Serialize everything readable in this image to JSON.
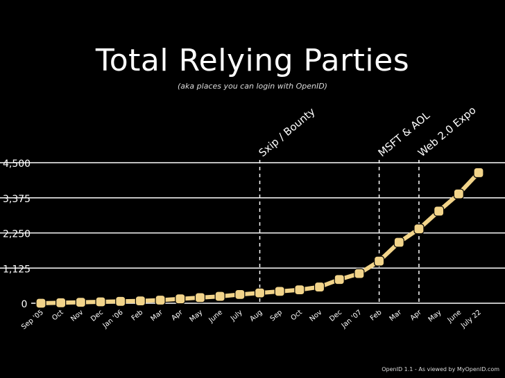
{
  "chart_data": {
    "type": "line",
    "title": "Total Relying Parties",
    "subtitle": "(aka places you can login with OpenID)",
    "footer": "OpenID 1.1 - As viewed by MyOpenID.com",
    "y_ticks": [
      "0",
      "1,125",
      "2,250",
      "3,375",
      "4,500"
    ],
    "y_tick_values": [
      0,
      1125,
      2250,
      3375,
      4500
    ],
    "ylim": [
      0,
      4500
    ],
    "x_labels": [
      "Sep '05",
      "Oct",
      "Nov",
      "Dec",
      "Jan '06",
      "Feb",
      "Mar",
      "Apr",
      "May",
      "June",
      "July",
      "Aug",
      "Sep",
      "Oct",
      "Nov",
      "Dec",
      "Jan '07",
      "Feb",
      "Mar",
      "Apr",
      "May",
      "June",
      "July 22"
    ],
    "series": [
      {
        "values": [
          0,
          15,
          30,
          45,
          60,
          75,
          100,
          140,
          180,
          220,
          280,
          330,
          380,
          430,
          520,
          760,
          950,
          1350,
          1950,
          2380,
          2950,
          3500,
          4180
        ]
      }
    ],
    "annotations": [
      {
        "label": "Sxip / Bounty",
        "at_index": 11
      },
      {
        "label": "MSFT & AOL",
        "at_index": 17
      },
      {
        "label": "Web 2.0 Expo",
        "at_index": 19
      }
    ],
    "grid": true,
    "colors": {
      "line": "#f2d48a",
      "grid": "#ffffff",
      "background": "#000000"
    }
  }
}
